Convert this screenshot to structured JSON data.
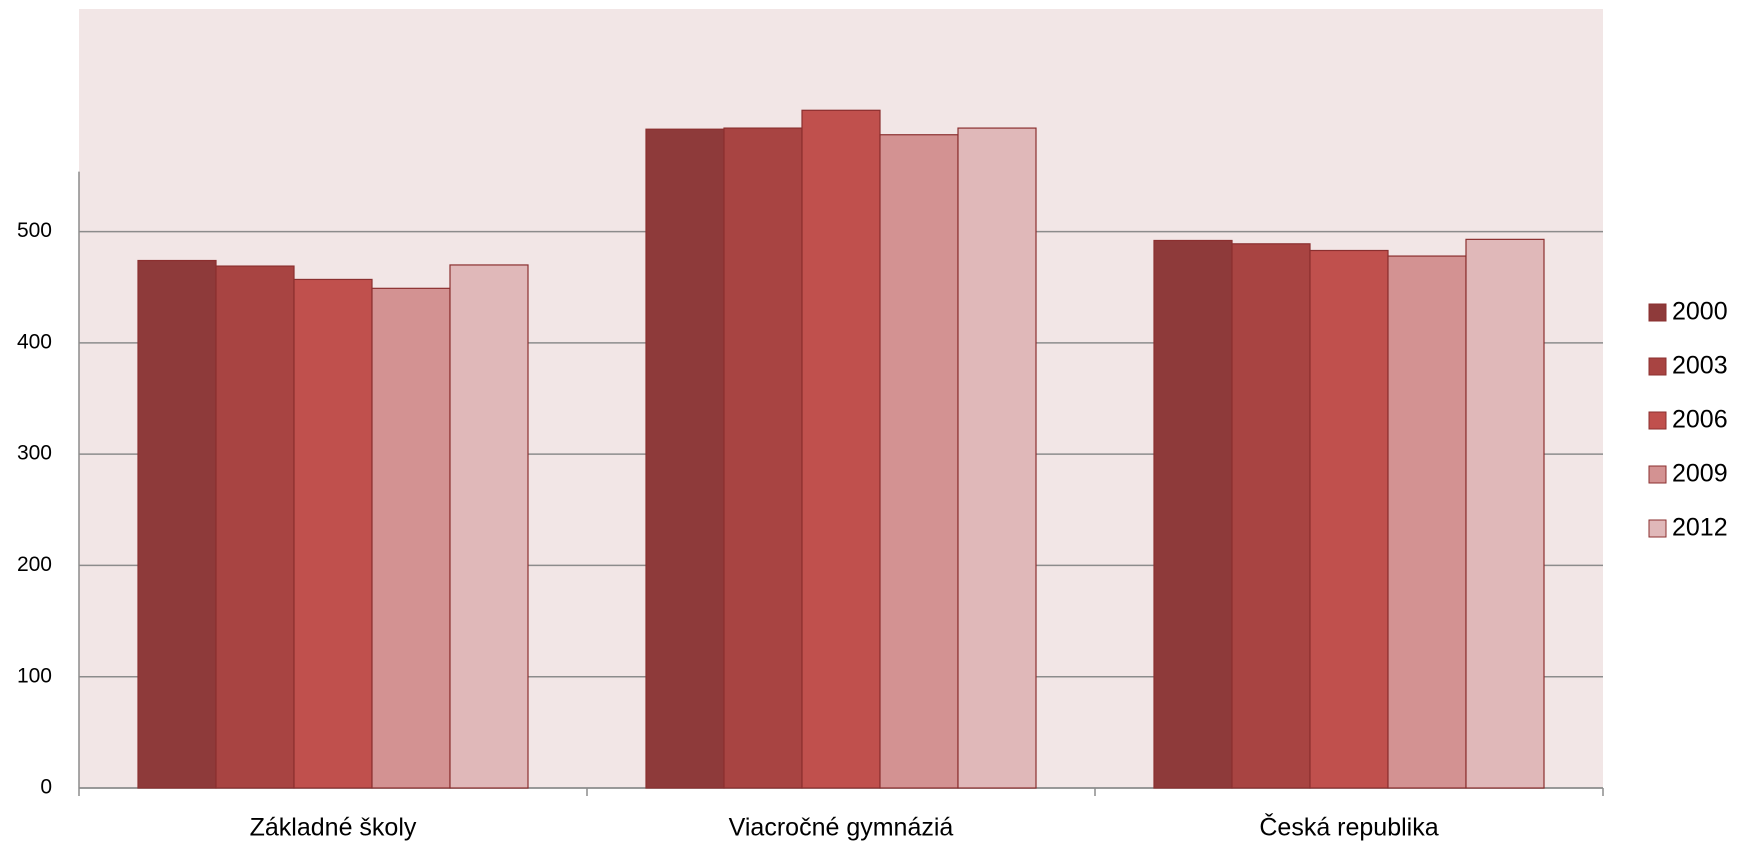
{
  "chart_data": {
    "type": "bar",
    "categories": [
      "Základné školy",
      "Viacročné gymnáziá",
      "Česká republika"
    ],
    "series": [
      {
        "name": "2000",
        "color": "#8e3a3a",
        "values": [
          474,
          592,
          492
        ]
      },
      {
        "name": "2003",
        "color": "#a84442",
        "values": [
          469,
          593,
          489
        ]
      },
      {
        "name": "2006",
        "color": "#c0504d",
        "values": [
          457,
          609,
          483
        ]
      },
      {
        "name": "2009",
        "color": "#d39292",
        "values": [
          449,
          587,
          478
        ]
      },
      {
        "name": "2012",
        "color": "#e0b8b9",
        "values": [
          470,
          593,
          493
        ]
      }
    ],
    "ylim": [
      0,
      700
    ],
    "yticks": [
      0,
      100,
      200,
      300,
      400,
      500
    ],
    "grid": true,
    "legend": "right"
  }
}
